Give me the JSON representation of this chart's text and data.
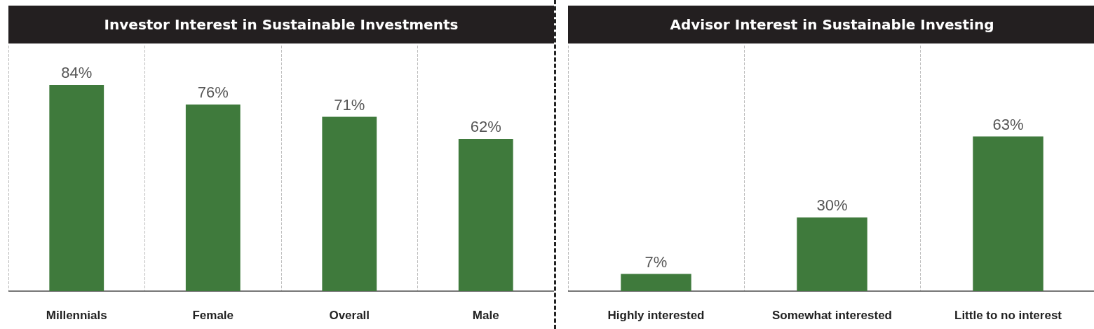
{
  "chart_data": [
    {
      "type": "bar",
      "title": "Investor Interest in Sustainable Investments",
      "categories": [
        "Millennials",
        "Female",
        "Overall",
        "Male"
      ],
      "values": [
        84,
        76,
        71,
        62
      ],
      "value_labels": [
        "84%",
        "76%",
        "71%",
        "62%"
      ],
      "color": "#3f7a3c",
      "tick_labels": "x",
      "grid": true
    },
    {
      "type": "bar",
      "title": "Advisor Interest in Sustainable Investing",
      "categories": [
        "Highly interested",
        "Somewhat interested",
        "Little to no interest"
      ],
      "values": [
        7,
        30,
        63
      ],
      "value_labels": [
        "7%",
        "30%",
        "63%"
      ],
      "color": "#3f7a3c",
      "tick_labels": "x",
      "grid": true
    }
  ]
}
